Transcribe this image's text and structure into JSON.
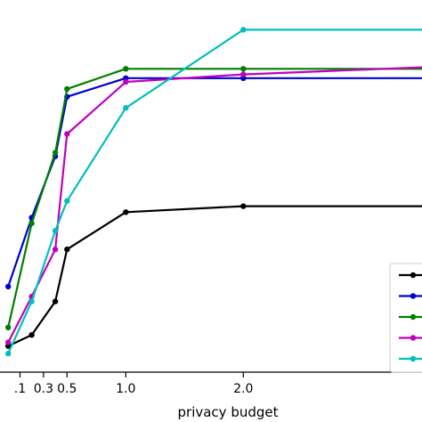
{
  "chart_data": {
    "type": "line",
    "title": "",
    "xlabel": "privacy budget",
    "ylabel": "",
    "xlim": [
      -0.07,
      3.52
    ],
    "ylim": [
      0.0,
      1.0
    ],
    "grid": false,
    "legend_position": "bottom-right",
    "x_ticks": [
      0.1,
      0.3,
      0.5,
      1.0,
      2.0
    ],
    "x_tick_labels": [
      ".1",
      "0.3",
      "0.5",
      "1.0",
      "2.0"
    ],
    "series": [
      {
        "color": "#000000",
        "x": [
          0.0,
          0.2,
          0.4,
          0.5,
          1.0,
          2.0,
          3.6
        ],
        "y": [
          0.07,
          0.1,
          0.19,
          0.33,
          0.43,
          0.446,
          0.446
        ]
      },
      {
        "color": "#0000cc",
        "x": [
          0.0,
          0.2,
          0.4,
          0.5,
          1.0,
          2.0,
          3.6
        ],
        "y": [
          0.23,
          0.415,
          0.58,
          0.74,
          0.79,
          0.79,
          0.79
        ]
      },
      {
        "color": "#007f00",
        "x": [
          0.0,
          0.2,
          0.4,
          0.5,
          1.0,
          2.0,
          3.6
        ],
        "y": [
          0.12,
          0.4,
          0.59,
          0.761,
          0.815,
          0.815,
          0.815
        ]
      },
      {
        "color": "#bf00bf",
        "x": [
          0.0,
          0.2,
          0.4,
          0.5,
          1.0,
          2.0,
          3.6
        ],
        "y": [
          0.08,
          0.203,
          0.33,
          0.64,
          0.78,
          0.8,
          0.82
        ]
      },
      {
        "color": "#00bfbf",
        "x": [
          0.0,
          0.2,
          0.4,
          0.5,
          1.0,
          2.0,
          3.6
        ],
        "y": [
          0.05,
          0.19,
          0.38,
          0.46,
          0.71,
          0.92,
          0.92
        ]
      }
    ]
  }
}
